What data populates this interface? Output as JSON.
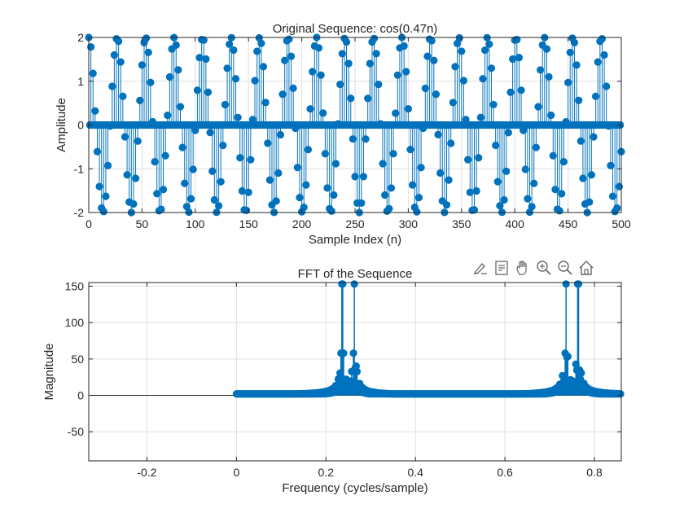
{
  "chart_data": [
    {
      "type": "stem",
      "title": "Original Sequence: cos(0.47n)",
      "xlabel": "Sample Index (n)",
      "ylabel": "Amplitude",
      "xlim": [
        0,
        500
      ],
      "ylim": [
        -2,
        2
      ],
      "xticks": [
        0,
        50,
        100,
        150,
        200,
        250,
        300,
        350,
        400,
        450,
        500
      ],
      "xtick_labels": [
        "0",
        "50",
        "100",
        "150",
        "200",
        "250",
        "300",
        "350",
        "400",
        "450",
        "500"
      ],
      "yticks": [
        -2,
        -1,
        0,
        1,
        2
      ],
      "ytick_labels": [
        "-2",
        "-1",
        "0",
        "1",
        "2"
      ],
      "grid": true,
      "series": [
        {
          "color": "#0072BD",
          "description_of_values": "upsampled sequence: y[n] = 2cos(0.47*n/2) at even n, 0 at odd n, n = 0..500",
          "generator": {
            "amplitude": 2,
            "omega": 0.47,
            "n_start": 0,
            "n_end": 500,
            "upsample": 2
          }
        }
      ]
    },
    {
      "type": "stem",
      "title": "FFT of the Sequence",
      "xlabel": "Frequency (cycles/sample)",
      "ylabel": "Magnitude",
      "xlim": [
        -0.33,
        0.86
      ],
      "ylim": [
        -90,
        155
      ],
      "xticks": [
        -0.2,
        0,
        0.2,
        0.4,
        0.6,
        0.8
      ],
      "xtick_labels": [
        "-0.2",
        "0",
        "0.2",
        "0.4",
        "0.6",
        "0.8"
      ],
      "yticks": [
        -50,
        0,
        50,
        100,
        150
      ],
      "ytick_labels": [
        "-50",
        "0",
        "50",
        "100",
        "150"
      ],
      "grid": true,
      "series": [
        {
          "color": "#0072BD",
          "peaks": [
            {
              "x": 0.2365,
              "y": 153
            },
            {
              "x": 0.2635,
              "y": 153
            },
            {
              "x": 0.7365,
              "y": 153
            },
            {
              "x": 0.7635,
              "y": 153
            }
          ],
          "x_range": [
            0,
            0.86
          ],
          "baseline_magnitude": 2
        }
      ]
    }
  ],
  "toolbar": {
    "buttons": [
      "brush-icon",
      "data-tip-icon",
      "pan-hand-icon",
      "zoom-in-icon",
      "zoom-out-icon",
      "home-icon"
    ]
  }
}
